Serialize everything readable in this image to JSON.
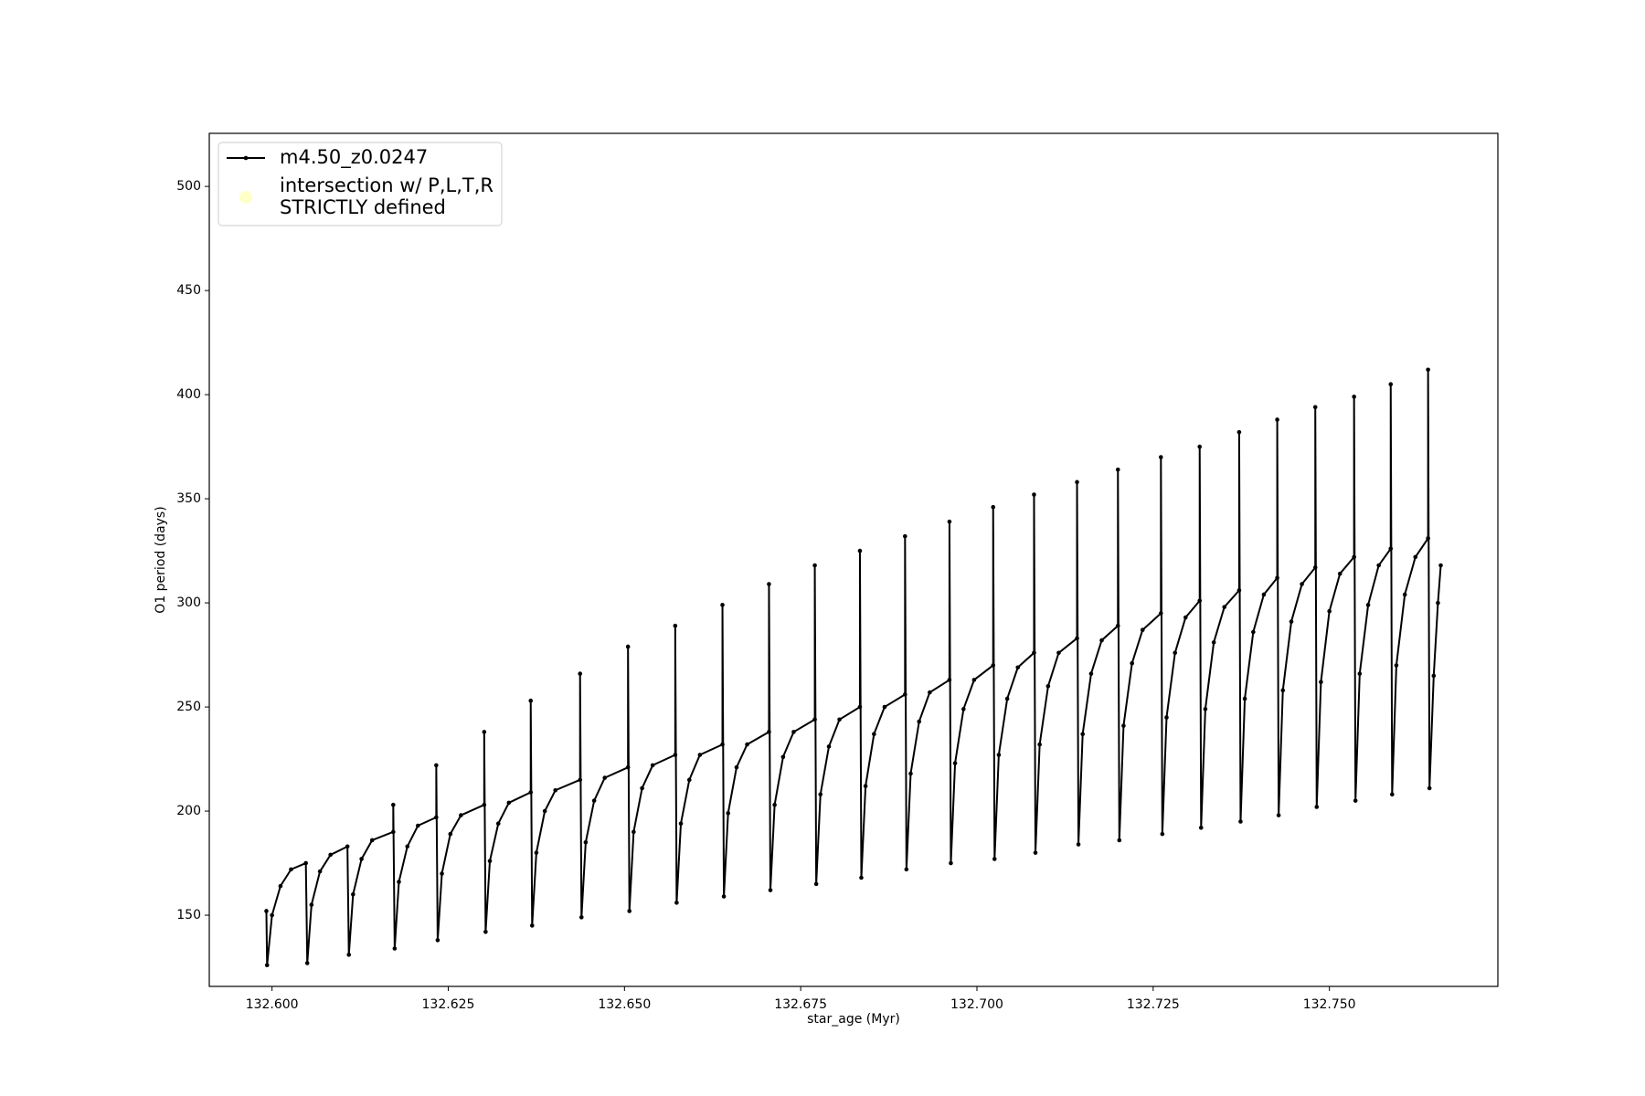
{
  "chart_data": {
    "type": "line",
    "xlabel": "star_age (Myr)",
    "ylabel": "O1 period (days)",
    "xlim": [
      132.5911,
      132.7739
    ],
    "ylim": [
      115.8,
      525.5
    ],
    "xticks": [
      {
        "value": 132.6,
        "label": "132.600"
      },
      {
        "value": 132.625,
        "label": "132.625"
      },
      {
        "value": 132.65,
        "label": "132.650"
      },
      {
        "value": 132.675,
        "label": "132.675"
      },
      {
        "value": 132.7,
        "label": "132.700"
      },
      {
        "value": 132.725,
        "label": "132.725"
      },
      {
        "value": 132.75,
        "label": "132.750"
      }
    ],
    "yticks": [
      150,
      200,
      250,
      300,
      350,
      400,
      450,
      500
    ],
    "legend": "upper left",
    "series": [
      {
        "name": "m4.50_z0.0247",
        "color": "#000000",
        "x": [
          132.5992,
          132.5993,
          132.6,
          132.6012,
          132.6027,
          132.6048,
          132.605,
          132.6056,
          132.6068,
          132.6083,
          132.6107,
          132.6109,
          132.6115,
          132.6127,
          132.6142,
          132.6172,
          132.6172,
          132.6174,
          132.618,
          132.6192,
          132.6207,
          132.6233,
          132.6233,
          132.6235,
          132.6241,
          132.6253,
          132.6268,
          132.6301,
          132.6301,
          132.6303,
          132.6309,
          132.6321,
          132.6336,
          132.6367,
          132.6367,
          132.6369,
          132.6375,
          132.6387,
          132.6402,
          132.6437,
          132.6437,
          132.6439,
          132.6445,
          132.6457,
          132.6472,
          132.6505,
          132.6505,
          132.6507,
          132.6513,
          132.6525,
          132.654,
          132.6572,
          132.6572,
          132.6574,
          132.658,
          132.6592,
          132.6607,
          132.6639,
          132.6639,
          132.6641,
          132.6647,
          132.6659,
          132.6674,
          132.6705,
          132.6705,
          132.6707,
          132.6713,
          132.6725,
          132.674,
          132.677,
          132.677,
          132.6772,
          132.6778,
          132.679,
          132.6805,
          132.6834,
          132.6834,
          132.6836,
          132.6842,
          132.6854,
          132.6869,
          132.6898,
          132.6898,
          132.69,
          132.6906,
          132.6918,
          132.6933,
          132.6961,
          132.6961,
          132.6963,
          132.6969,
          132.6981,
          132.6996,
          132.7023,
          132.7023,
          132.7025,
          132.7031,
          132.7043,
          132.7058,
          132.7081,
          132.7081,
          132.7083,
          132.7089,
          132.7101,
          132.7116,
          132.7142,
          132.7142,
          132.7144,
          132.715,
          132.7162,
          132.7177,
          132.72,
          132.72,
          132.7202,
          132.7208,
          132.722,
          132.7235,
          132.7261,
          132.7261,
          132.7263,
          132.7269,
          132.7281,
          132.7296,
          132.7316,
          132.7316,
          132.7318,
          132.7324,
          132.7336,
          132.7351,
          132.7372,
          132.7372,
          132.7374,
          132.738,
          132.7392,
          132.7407,
          132.7426,
          132.7426,
          132.7428,
          132.7434,
          132.7446,
          132.7461,
          132.748,
          132.748,
          132.7482,
          132.7488,
          132.75,
          132.7515,
          132.7535,
          132.7535,
          132.7537,
          132.7543,
          132.7555,
          132.757,
          132.7587,
          132.7587,
          132.7589,
          132.7595,
          132.7607,
          132.7622,
          132.764,
          132.764,
          132.7642,
          132.7648,
          132.7654,
          132.7658
        ],
        "values": [
          152,
          126,
          150,
          164,
          172,
          175,
          127,
          155,
          171,
          179,
          183,
          131,
          160,
          177,
          186,
          190,
          203,
          134,
          166,
          183,
          193,
          197,
          222,
          138,
          170,
          189,
          198,
          203,
          238,
          142,
          176,
          194,
          204,
          209,
          253,
          145,
          180,
          200,
          210,
          215,
          266,
          149,
          185,
          205,
          216,
          221,
          279,
          152,
          190,
          211,
          222,
          227,
          289,
          156,
          194,
          215,
          227,
          232,
          299,
          159,
          199,
          221,
          232,
          238,
          309,
          162,
          203,
          226,
          238,
          244,
          318,
          165,
          208,
          231,
          244,
          250,
          325,
          168,
          212,
          237,
          250,
          256,
          332,
          172,
          218,
          243,
          257,
          263,
          339,
          175,
          223,
          249,
          263,
          270,
          346,
          177,
          227,
          254,
          269,
          276,
          352,
          180,
          232,
          260,
          276,
          283,
          358,
          184,
          237,
          266,
          282,
          289,
          364,
          186,
          241,
          271,
          287,
          295,
          370,
          189,
          245,
          276,
          293,
          301,
          375,
          192,
          249,
          281,
          298,
          306,
          382,
          195,
          254,
          286,
          304,
          312,
          388,
          198,
          258,
          291,
          309,
          317,
          394,
          202,
          262,
          296,
          314,
          322,
          399,
          205,
          266,
          299,
          318,
          326,
          405,
          208,
          270,
          304,
          322,
          331,
          412,
          211,
          265,
          300,
          318
        ]
      },
      {
        "name": "intersection w/ P,L,T,R\nSTRICTLY defined",
        "type": "scatter",
        "color": "#ffffb0",
        "x": [],
        "values": []
      }
    ]
  }
}
